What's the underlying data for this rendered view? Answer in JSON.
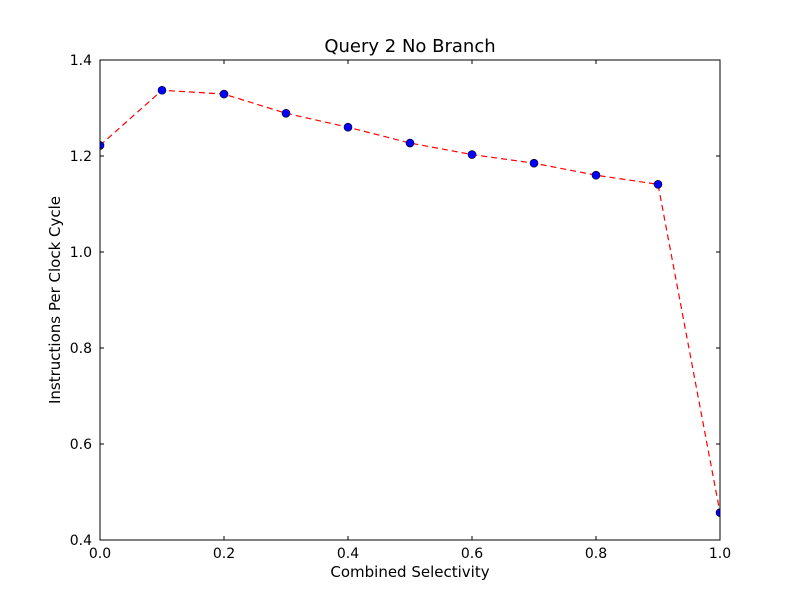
{
  "chart_data": {
    "type": "line",
    "title": "Query 2 No Branch",
    "xlabel": "Combined Selectivity",
    "ylabel": "Instructions Per Clock Cycle",
    "xlim": [
      0.0,
      1.0
    ],
    "ylim": [
      0.4,
      1.4
    ],
    "x_ticks": [
      0.0,
      0.2,
      0.4,
      0.6,
      0.8,
      1.0
    ],
    "x_tick_labels": [
      "0.0",
      "0.2",
      "0.4",
      "0.6",
      "0.8",
      "1.0"
    ],
    "y_ticks": [
      0.4,
      0.6,
      0.8,
      1.0,
      1.2,
      1.4
    ],
    "y_tick_labels": [
      "0.4",
      "0.6",
      "0.8",
      "1.0",
      "1.2",
      "1.4"
    ],
    "grid": false,
    "series": [
      {
        "x": [
          0.0,
          0.1,
          0.2,
          0.3,
          0.4,
          0.5,
          0.6,
          0.7,
          0.8,
          0.9,
          1.0
        ],
        "y": [
          1.222,
          1.337,
          1.329,
          1.289,
          1.26,
          1.227,
          1.203,
          1.185,
          1.16,
          1.141,
          0.457
        ],
        "line_color": "#ff0000",
        "line_style": "dashed",
        "marker_color": "#0000ff",
        "marker": "circle"
      }
    ]
  }
}
